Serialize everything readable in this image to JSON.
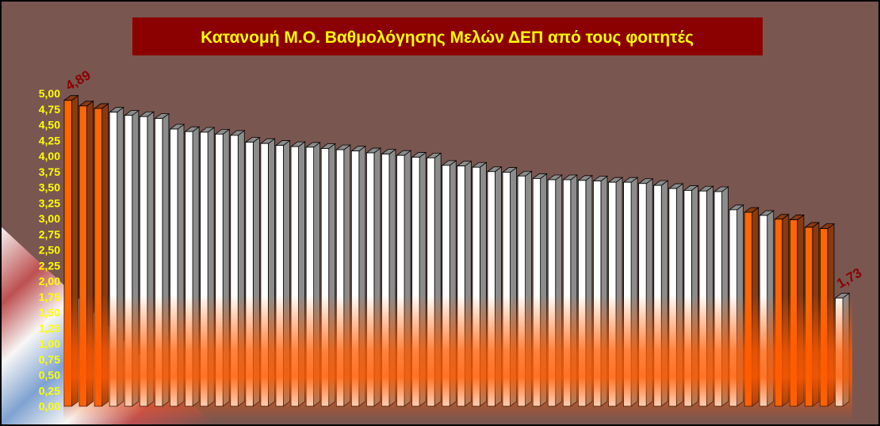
{
  "colors": {
    "background": "#7a5650",
    "title_bg": "#8b0000",
    "title_text": "#ffff00",
    "tick_text": "#ffff00",
    "label_text": "#8b0000",
    "bar_white": "#ffffff",
    "bar_orange": "#ff6600",
    "side_gray": "#8c8c8c",
    "side_brown": "#8b3a0f",
    "glow": "#ff5a00"
  },
  "chart_data": {
    "type": "bar",
    "title": "Κατανομή Μ.Ο. Βαθμολόγησης Μελών ΔΕΠ από τους φοιτητές",
    "xlabel": "",
    "ylabel": "",
    "ylim": [
      0,
      5
    ],
    "y_ticks": [
      "0,00",
      "0,25",
      "0,50",
      "0,75",
      "1,00",
      "1,25",
      "1,50",
      "1,75",
      "2,00",
      "2,25",
      "2,50",
      "2,75",
      "3,00",
      "3,25",
      "3,50",
      "3,75",
      "4,00",
      "4,25",
      "4,50",
      "4,75",
      "5,00"
    ],
    "grid": false,
    "legend": "none",
    "values": [
      4.89,
      4.8,
      4.76,
      4.7,
      4.65,
      4.63,
      4.6,
      4.43,
      4.39,
      4.38,
      4.35,
      4.33,
      4.22,
      4.2,
      4.17,
      4.15,
      4.14,
      4.12,
      4.1,
      4.08,
      4.05,
      4.03,
      4.01,
      3.98,
      3.97,
      3.85,
      3.84,
      3.82,
      3.75,
      3.74,
      3.68,
      3.64,
      3.62,
      3.62,
      3.61,
      3.6,
      3.58,
      3.58,
      3.56,
      3.53,
      3.48,
      3.45,
      3.44,
      3.43,
      3.14,
      3.1,
      3.05,
      2.99,
      2.98,
      2.86,
      2.84,
      1.73
    ],
    "highlight": [
      0,
      1,
      2,
      45,
      47,
      48,
      49,
      50
    ],
    "data_labels": [
      {
        "index": 0,
        "text": "4,89"
      },
      {
        "index": 51,
        "text": "1,73"
      }
    ]
  }
}
